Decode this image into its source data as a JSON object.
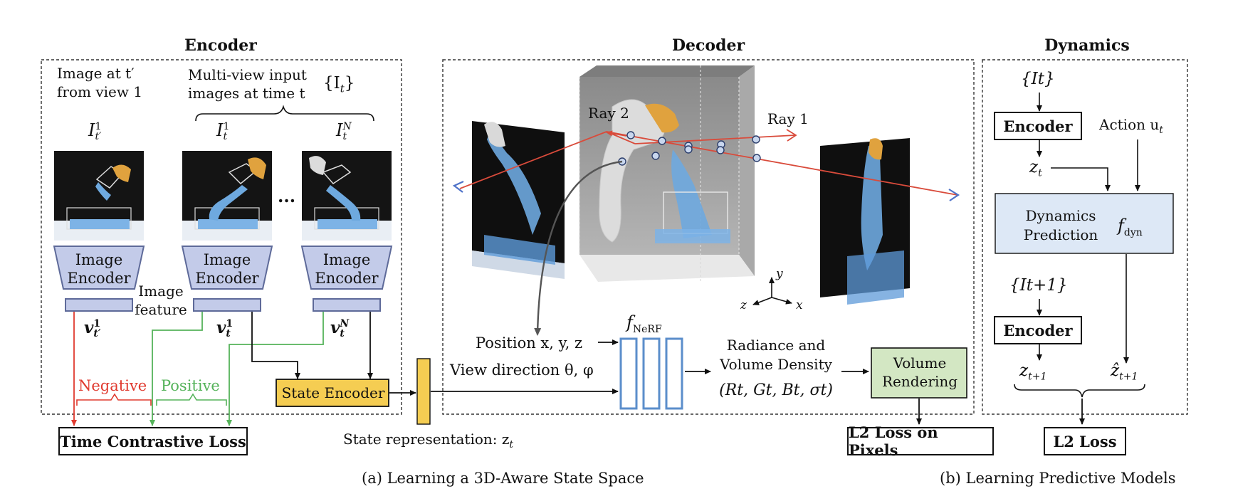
{
  "encoder": {
    "title": "Encoder",
    "image_at_prev": [
      "Image at t′",
      "from view 1"
    ],
    "multiview": [
      "Multi-view input",
      "images at time t"
    ],
    "set_label": "{I",
    "set_sub": "t",
    "img1_label": "I",
    "img1_sup": "1",
    "img1_sub": "t′",
    "img2_label": "I",
    "img2_sup": "1",
    "img2_sub": "t",
    "img3_label": "I",
    "img3_sup": "N",
    "img3_sub": "t",
    "ellipsis": "...",
    "image_encoder": [
      "Image",
      "Encoder"
    ],
    "image_feature": [
      "Image",
      "feature"
    ],
    "v1_prev": "v",
    "v1_prev_sup": "1",
    "v1_prev_sub": "t′",
    "v1": "v",
    "v1_sup": "1",
    "v1_sub": "t",
    "vN": "v",
    "vN_sup": "N",
    "vN_sub": "t",
    "negative": "Negative",
    "positive": "Positive",
    "state_encoder": "State Encoder",
    "time_contrastive_loss": "Time Contrastive Loss",
    "state_representation": "State representation: z",
    "state_representation_sub": "t"
  },
  "decoder": {
    "title": "Decoder",
    "ray2": "Ray 2",
    "ray1": "Ray 1",
    "axes": {
      "y": "y",
      "z": "z",
      "x": "x"
    },
    "position": "Position x, y, z",
    "view_direction": "View direction θ, φ",
    "fnerf": "f",
    "fnerf_sub": "NeRF",
    "radiance": [
      "Radiance and",
      "Volume Density"
    ],
    "rgbs": "(R",
    "rgbs_full": "(Rt, Gt, Bt, σt)",
    "volume_rendering": [
      "Volume",
      "Rendering"
    ],
    "l2_pixels": "L2 Loss on Pixels"
  },
  "dynamics": {
    "title": "Dynamics",
    "it_label": "{It}",
    "encoder1": "Encoder",
    "action": "Action u",
    "action_sub": "t",
    "zt": "z",
    "zt_sub": "t",
    "dyn_pred": [
      "Dynamics",
      "Prediction"
    ],
    "fdyn": "f",
    "fdyn_sub": "dyn",
    "it1_label": "{It+1}",
    "encoder2": "Encoder",
    "zt1": "z",
    "zt1_sub": "t+1",
    "zhat": "ẑ",
    "zhat_sub": "t+1",
    "l2_loss": "L2 Loss"
  },
  "captions": {
    "a": "(a)  Learning a 3D-Aware State Space",
    "b": "(b)  Learning Predictive Models"
  },
  "colors": {
    "encoder_fill": "#c3cbe9",
    "state_encoder_fill": "#f5cd52",
    "dynamics_fill": "#dde8f6",
    "volume_fill": "#d3e7c3",
    "negative": "#e03a2f",
    "positive": "#55b35a",
    "nerf_blue": "#5b8ecb",
    "ray": "#d94b3b"
  }
}
